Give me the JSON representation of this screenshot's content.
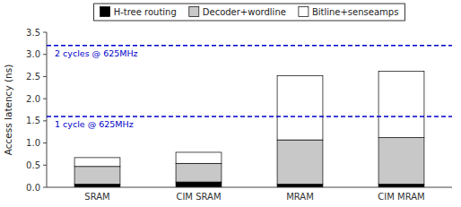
{
  "chart_data": {
    "type": "bar",
    "stacked": true,
    "categories": [
      "SRAM",
      "CIM SRAM",
      "MRAM",
      "CIM MRAM"
    ],
    "series": [
      {
        "name": "H-tree routing",
        "color": "#000000",
        "values": [
          0.07,
          0.12,
          0.07,
          0.07
        ]
      },
      {
        "name": "Decoder+wordline",
        "color": "#c8c8c8",
        "values": [
          0.4,
          0.42,
          1.0,
          1.05
        ]
      },
      {
        "name": "Bitline+senseamps",
        "color": "#ffffff",
        "values": [
          0.2,
          0.25,
          1.45,
          1.5
        ]
      }
    ],
    "annotations": [
      {
        "value": 1.6,
        "text": "1 cycle @ 625MHz",
        "color": "#0000cc",
        "line_style": "dashed"
      },
      {
        "value": 3.2,
        "text": "2 cycles @ 625MHz",
        "color": "#0000cc",
        "line_style": "dashed"
      }
    ],
    "ylabel": "Access latency (ns)",
    "ylim": [
      0,
      3.5
    ],
    "yticks": [
      {
        "value": 0,
        "label": "0.0"
      },
      {
        "value": 0.5,
        "label": "0.5"
      },
      {
        "value": 1,
        "label": "1.0"
      },
      {
        "value": 1.5,
        "label": "1.5"
      },
      {
        "value": 2,
        "label": "2.0"
      },
      {
        "value": 2.5,
        "label": "2.5"
      },
      {
        "value": 3,
        "label": "3.0"
      },
      {
        "value": 3.5,
        "label": "3.5"
      }
    ],
    "grid": false,
    "legend": "top"
  }
}
